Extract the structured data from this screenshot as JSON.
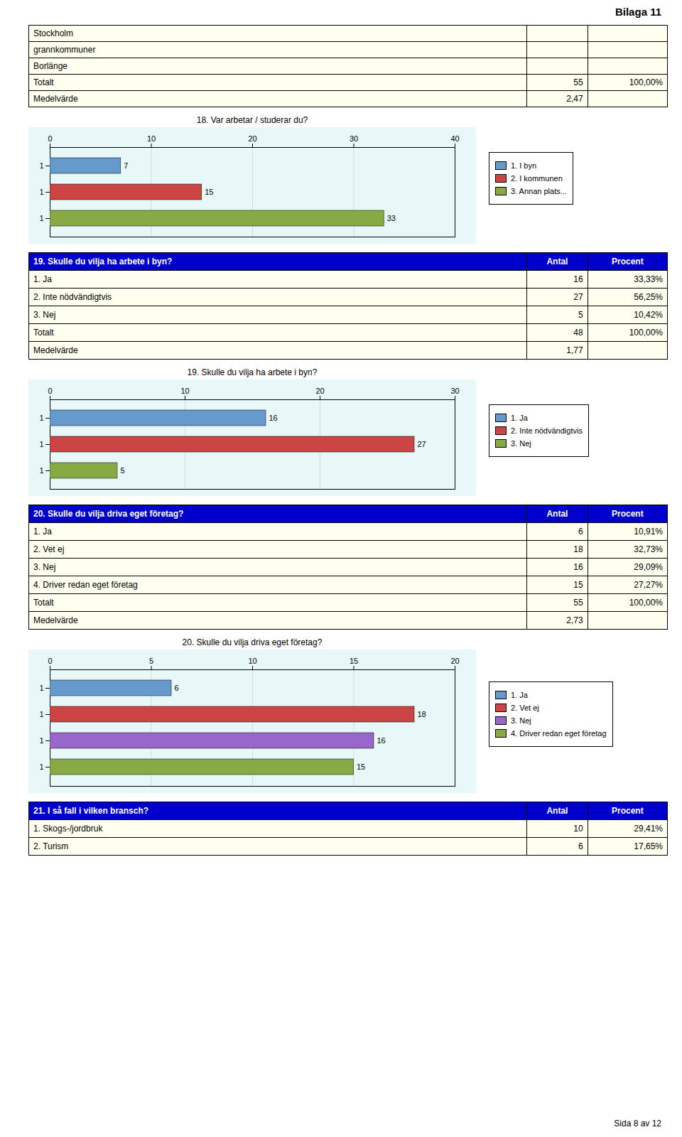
{
  "annotations": [
    "Bilaga 11",
    "Sida 8 av 12"
  ],
  "chart_data": [
    {
      "type": "table",
      "categories": [
        "Stockholm",
        "grannkommuner",
        "Borlänge",
        "Totalt",
        "Medelvärde"
      ],
      "series": [
        {
          "values": [
            null,
            null,
            null,
            55,
            2.47
          ],
          "value_labels": [
            null,
            null,
            null,
            "55",
            "2,47"
          ]
        },
        {
          "values": [
            null,
            null,
            null,
            100.0,
            null
          ],
          "value_labels": [
            null,
            null,
            null,
            "100,00%",
            null
          ]
        }
      ]
    },
    {
      "type": "bar",
      "orientation": "horizontal",
      "title": "18. Var arbetar / studerar du?",
      "categories": [
        "1",
        "1",
        "1"
      ],
      "series": [
        {
          "name": "1. I byn",
          "color": "#6699cc",
          "values": [
            7,
            null,
            null
          ]
        },
        {
          "name": "2. I kommunen",
          "color": "#cc4444",
          "values": [
            null,
            15,
            null
          ]
        },
        {
          "name": "3. Annan plats...",
          "color": "#88aa44",
          "values": [
            null,
            null,
            33
          ]
        }
      ],
      "xlim": [
        0,
        40
      ],
      "xticks": [
        0,
        10,
        20,
        30,
        40
      ],
      "grid": true,
      "data_labels": true,
      "legend": "right"
    },
    {
      "type": "table",
      "title": "19. Skulle du vilja ha arbete i byn?",
      "categories": [
        "1. Ja",
        "2. Inte nödvändigtvis",
        "3. Nej",
        "Totalt",
        "Medelvärde"
      ],
      "series": [
        {
          "name": "Antal",
          "values": [
            16,
            27,
            5,
            48,
            1.77
          ],
          "value_labels": [
            "16",
            "27",
            "5",
            "48",
            "1,77"
          ]
        },
        {
          "name": "Procent",
          "values": [
            33.33,
            56.25,
            10.42,
            100.0,
            null
          ],
          "value_labels": [
            "33,33%",
            "56,25%",
            "10,42%",
            "100,00%",
            null
          ]
        }
      ]
    },
    {
      "type": "bar",
      "orientation": "horizontal",
      "title": "19. Skulle du vilja ha arbete i byn?",
      "categories": [
        "1",
        "1",
        "1"
      ],
      "series": [
        {
          "name": "1. Ja",
          "color": "#6699cc",
          "values": [
            16,
            null,
            null
          ]
        },
        {
          "name": "2. Inte nödvändigtvis",
          "color": "#cc4444",
          "values": [
            null,
            27,
            null
          ]
        },
        {
          "name": "3. Nej",
          "color": "#88aa44",
          "values": [
            null,
            null,
            5
          ]
        }
      ],
      "xlim": [
        0,
        30
      ],
      "xticks": [
        0,
        10,
        20,
        30
      ],
      "grid": true,
      "data_labels": true,
      "legend": "right"
    },
    {
      "type": "table",
      "title": "20. Skulle du vilja driva eget företag?",
      "categories": [
        "1. Ja",
        "2. Vet ej",
        "3. Nej",
        "4. Driver redan eget företag",
        "Totalt",
        "Medelvärde"
      ],
      "series": [
        {
          "name": "Antal",
          "values": [
            6,
            18,
            16,
            15,
            55,
            2.73
          ],
          "value_labels": [
            "6",
            "18",
            "16",
            "15",
            "55",
            "2,73"
          ]
        },
        {
          "name": "Procent",
          "values": [
            10.91,
            32.73,
            29.09,
            27.27,
            100.0,
            null
          ],
          "value_labels": [
            "10,91%",
            "32,73%",
            "29,09%",
            "27,27%",
            "100,00%",
            null
          ]
        }
      ]
    },
    {
      "type": "bar",
      "orientation": "horizontal",
      "title": "20. Skulle du vilja driva eget företag?",
      "categories": [
        "1",
        "1",
        "1",
        "1"
      ],
      "series": [
        {
          "name": "1. Ja",
          "color": "#6699cc",
          "values": [
            6,
            null,
            null,
            null
          ]
        },
        {
          "name": "2. Vet ej",
          "color": "#cc4444",
          "values": [
            null,
            18,
            null,
            null
          ]
        },
        {
          "name": "3. Nej",
          "color": "#9966cc",
          "values": [
            null,
            null,
            16,
            null
          ]
        },
        {
          "name": "4. Driver redan eget företag",
          "color": "#88aa44",
          "values": [
            null,
            null,
            null,
            15
          ]
        }
      ],
      "xlim": [
        0,
        20
      ],
      "xticks": [
        0,
        5,
        10,
        15,
        20
      ],
      "grid": true,
      "data_labels": true,
      "legend": "right"
    },
    {
      "type": "table",
      "title": "21. I så fall i vilken bransch?",
      "categories": [
        "1. Skogs-/jordbruk",
        "2. Turism"
      ],
      "series": [
        {
          "name": "Antal",
          "values": [
            10,
            6
          ],
          "value_labels": [
            "10",
            "6"
          ]
        },
        {
          "name": "Procent",
          "values": [
            29.41,
            17.65
          ],
          "value_labels": [
            "29,41%",
            "17,65%"
          ]
        }
      ]
    }
  ]
}
